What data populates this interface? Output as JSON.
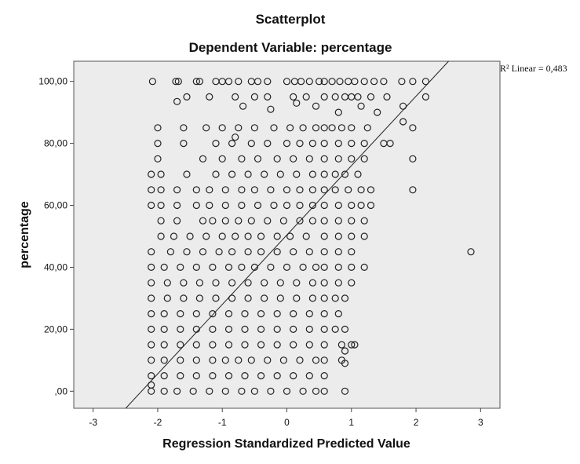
{
  "chart_data": {
    "type": "scatter",
    "title": "Scatterplot",
    "subtitle": "Dependent Variable: percentage",
    "xlabel": "Regression Standardized Predicted Value",
    "ylabel": "percentage",
    "xlim": [
      -3.3,
      3.3
    ],
    "ylim": [
      -5.5,
      106.5
    ],
    "x_ticks": [
      -3,
      -2,
      -1,
      0,
      1,
      2,
      3
    ],
    "x_tick_labels": [
      "-3",
      "-2",
      "-1",
      "0",
      "1",
      "2",
      "3"
    ],
    "y_ticks": [
      0,
      20,
      40,
      60,
      80,
      100
    ],
    "y_tick_labels": [
      ",00",
      "20,00",
      "40,00",
      "60,00",
      "80,00",
      "100,00"
    ],
    "fit_line": {
      "label": "R² Linear = 0,483",
      "intercept": 50.4,
      "slope": 22.4
    },
    "plot_background": "#ececec",
    "marker_color": "#222222",
    "grid": false,
    "points": [
      [
        -2.08,
        100
      ],
      [
        -1.72,
        100
      ],
      [
        -1.68,
        100
      ],
      [
        -1.4,
        100
      ],
      [
        -1.35,
        100
      ],
      [
        -1.1,
        100
      ],
      [
        -1.0,
        100
      ],
      [
        -0.9,
        100
      ],
      [
        -0.75,
        100
      ],
      [
        -0.55,
        100
      ],
      [
        -0.45,
        100
      ],
      [
        -0.3,
        100
      ],
      [
        0.0,
        100
      ],
      [
        0.12,
        100
      ],
      [
        0.22,
        100
      ],
      [
        0.35,
        100
      ],
      [
        0.5,
        100
      ],
      [
        0.58,
        100
      ],
      [
        0.7,
        100
      ],
      [
        0.82,
        100
      ],
      [
        0.95,
        100
      ],
      [
        1.05,
        100
      ],
      [
        1.2,
        100
      ],
      [
        1.35,
        100
      ],
      [
        1.5,
        100
      ],
      [
        1.78,
        100
      ],
      [
        1.95,
        100
      ],
      [
        2.15,
        100
      ],
      [
        -1.7,
        93.5
      ],
      [
        -1.55,
        95
      ],
      [
        -1.2,
        95
      ],
      [
        -0.8,
        95
      ],
      [
        -0.5,
        95
      ],
      [
        -0.3,
        95
      ],
      [
        0.1,
        95
      ],
      [
        0.3,
        95
      ],
      [
        0.58,
        95
      ],
      [
        0.75,
        95
      ],
      [
        0.9,
        95
      ],
      [
        1.0,
        95
      ],
      [
        1.1,
        95
      ],
      [
        1.3,
        95
      ],
      [
        1.55,
        95
      ],
      [
        2.15,
        95
      ],
      [
        -0.68,
        92
      ],
      [
        -0.25,
        91
      ],
      [
        0.15,
        93
      ],
      [
        0.45,
        92
      ],
      [
        0.8,
        90
      ],
      [
        1.15,
        92
      ],
      [
        1.4,
        90
      ],
      [
        1.8,
        92
      ],
      [
        -2.0,
        85
      ],
      [
        -1.6,
        85
      ],
      [
        -1.25,
        85
      ],
      [
        -1.0,
        85
      ],
      [
        -0.75,
        85
      ],
      [
        -0.5,
        85
      ],
      [
        -0.2,
        85
      ],
      [
        0.05,
        85
      ],
      [
        0.25,
        85
      ],
      [
        0.45,
        85
      ],
      [
        0.58,
        85
      ],
      [
        0.7,
        85
      ],
      [
        0.85,
        85
      ],
      [
        1.0,
        85
      ],
      [
        1.25,
        85
      ],
      [
        1.95,
        85
      ],
      [
        1.8,
        87
      ],
      [
        -2.0,
        80
      ],
      [
        -1.6,
        80
      ],
      [
        -1.1,
        80
      ],
      [
        -0.85,
        80
      ],
      [
        -0.55,
        80
      ],
      [
        -0.3,
        80
      ],
      [
        0.0,
        80
      ],
      [
        0.2,
        80
      ],
      [
        0.4,
        80
      ],
      [
        0.58,
        80
      ],
      [
        0.8,
        80
      ],
      [
        1.0,
        80
      ],
      [
        1.2,
        80
      ],
      [
        1.5,
        80
      ],
      [
        1.6,
        80
      ],
      [
        -0.8,
        82
      ],
      [
        -2.0,
        75
      ],
      [
        -1.3,
        75
      ],
      [
        -1.0,
        75
      ],
      [
        -0.7,
        75
      ],
      [
        -0.45,
        75
      ],
      [
        -0.15,
        75
      ],
      [
        0.1,
        75
      ],
      [
        0.35,
        75
      ],
      [
        0.58,
        75
      ],
      [
        0.8,
        75
      ],
      [
        1.0,
        75
      ],
      [
        1.2,
        75
      ],
      [
        1.95,
        75
      ],
      [
        -2.1,
        70
      ],
      [
        -1.95,
        70
      ],
      [
        -1.55,
        70
      ],
      [
        -1.1,
        70
      ],
      [
        -0.85,
        70
      ],
      [
        -0.6,
        70
      ],
      [
        -0.35,
        70
      ],
      [
        -0.1,
        70
      ],
      [
        0.15,
        70
      ],
      [
        0.4,
        70
      ],
      [
        0.58,
        70
      ],
      [
        0.75,
        70
      ],
      [
        0.9,
        70
      ],
      [
        1.1,
        70
      ],
      [
        -2.1,
        65
      ],
      [
        -1.95,
        65
      ],
      [
        -1.7,
        65
      ],
      [
        -1.4,
        65
      ],
      [
        -1.2,
        65
      ],
      [
        -0.95,
        65
      ],
      [
        -0.7,
        65
      ],
      [
        -0.5,
        65
      ],
      [
        -0.25,
        65
      ],
      [
        0.0,
        65
      ],
      [
        0.2,
        65
      ],
      [
        0.4,
        65
      ],
      [
        0.58,
        65
      ],
      [
        0.75,
        65
      ],
      [
        0.95,
        65
      ],
      [
        1.15,
        65
      ],
      [
        1.3,
        65
      ],
      [
        1.95,
        65
      ],
      [
        -2.1,
        60
      ],
      [
        -1.95,
        60
      ],
      [
        -1.7,
        60
      ],
      [
        -1.4,
        60
      ],
      [
        -1.2,
        60
      ],
      [
        -0.95,
        60
      ],
      [
        -0.7,
        60
      ],
      [
        -0.45,
        60
      ],
      [
        -0.2,
        60
      ],
      [
        0.0,
        60
      ],
      [
        0.2,
        60
      ],
      [
        0.4,
        60
      ],
      [
        0.58,
        60
      ],
      [
        0.8,
        60
      ],
      [
        1.0,
        60
      ],
      [
        1.15,
        60
      ],
      [
        1.3,
        60
      ],
      [
        -1.95,
        55
      ],
      [
        -1.7,
        55
      ],
      [
        -1.3,
        55
      ],
      [
        -1.15,
        55
      ],
      [
        -0.95,
        55
      ],
      [
        -0.75,
        55
      ],
      [
        -0.55,
        55
      ],
      [
        -0.3,
        55
      ],
      [
        -0.05,
        55
      ],
      [
        0.2,
        55
      ],
      [
        0.4,
        55
      ],
      [
        0.58,
        55
      ],
      [
        0.8,
        55
      ],
      [
        1.0,
        55
      ],
      [
        1.2,
        55
      ],
      [
        -1.95,
        50
      ],
      [
        -1.75,
        50
      ],
      [
        -1.5,
        50
      ],
      [
        -1.25,
        50
      ],
      [
        -1.0,
        50
      ],
      [
        -0.8,
        50
      ],
      [
        -0.6,
        50
      ],
      [
        -0.4,
        50
      ],
      [
        -0.15,
        50
      ],
      [
        0.05,
        50
      ],
      [
        0.3,
        50
      ],
      [
        0.58,
        50
      ],
      [
        0.8,
        50
      ],
      [
        1.0,
        50
      ],
      [
        1.2,
        50
      ],
      [
        -2.1,
        45
      ],
      [
        -1.8,
        45
      ],
      [
        -1.55,
        45
      ],
      [
        -1.3,
        45
      ],
      [
        -1.05,
        45
      ],
      [
        -0.85,
        45
      ],
      [
        -0.6,
        45
      ],
      [
        -0.4,
        45
      ],
      [
        -0.15,
        45
      ],
      [
        0.1,
        45
      ],
      [
        0.35,
        45
      ],
      [
        0.58,
        45
      ],
      [
        0.8,
        45
      ],
      [
        1.0,
        45
      ],
      [
        2.85,
        45
      ],
      [
        -2.1,
        40
      ],
      [
        -1.9,
        40
      ],
      [
        -1.65,
        40
      ],
      [
        -1.4,
        40
      ],
      [
        -1.15,
        40
      ],
      [
        -0.9,
        40
      ],
      [
        -0.7,
        40
      ],
      [
        -0.5,
        40
      ],
      [
        -0.25,
        40
      ],
      [
        0.0,
        40
      ],
      [
        0.25,
        40
      ],
      [
        0.45,
        40
      ],
      [
        0.58,
        40
      ],
      [
        0.8,
        40
      ],
      [
        1.0,
        40
      ],
      [
        1.2,
        40
      ],
      [
        -2.1,
        35
      ],
      [
        -1.85,
        35
      ],
      [
        -1.6,
        35
      ],
      [
        -1.35,
        35
      ],
      [
        -1.1,
        35
      ],
      [
        -0.85,
        35
      ],
      [
        -0.6,
        35
      ],
      [
        -0.35,
        35
      ],
      [
        -0.1,
        35
      ],
      [
        0.15,
        35
      ],
      [
        0.4,
        35
      ],
      [
        0.58,
        35
      ],
      [
        0.8,
        35
      ],
      [
        1.0,
        35
      ],
      [
        -2.1,
        30
      ],
      [
        -1.85,
        30
      ],
      [
        -1.6,
        30
      ],
      [
        -1.35,
        30
      ],
      [
        -1.1,
        30
      ],
      [
        -0.85,
        30
      ],
      [
        -0.6,
        30
      ],
      [
        -0.35,
        30
      ],
      [
        -0.1,
        30
      ],
      [
        0.15,
        30
      ],
      [
        0.4,
        30
      ],
      [
        0.58,
        30
      ],
      [
        0.75,
        30
      ],
      [
        0.9,
        30
      ],
      [
        -2.1,
        25
      ],
      [
        -1.9,
        25
      ],
      [
        -1.65,
        25
      ],
      [
        -1.4,
        25
      ],
      [
        -1.15,
        25
      ],
      [
        -0.9,
        25
      ],
      [
        -0.65,
        25
      ],
      [
        -0.4,
        25
      ],
      [
        -0.15,
        25
      ],
      [
        0.1,
        25
      ],
      [
        0.35,
        25
      ],
      [
        0.58,
        25
      ],
      [
        0.8,
        25
      ],
      [
        -2.1,
        20
      ],
      [
        -1.9,
        20
      ],
      [
        -1.65,
        20
      ],
      [
        -1.4,
        20
      ],
      [
        -1.15,
        20
      ],
      [
        -0.9,
        20
      ],
      [
        -0.65,
        20
      ],
      [
        -0.4,
        20
      ],
      [
        -0.15,
        20
      ],
      [
        0.1,
        20
      ],
      [
        0.35,
        20
      ],
      [
        0.58,
        20
      ],
      [
        0.75,
        20
      ],
      [
        0.9,
        20
      ],
      [
        -2.1,
        15
      ],
      [
        -1.9,
        15
      ],
      [
        -1.65,
        15
      ],
      [
        -1.4,
        15
      ],
      [
        -1.15,
        15
      ],
      [
        -0.9,
        15
      ],
      [
        -0.65,
        15
      ],
      [
        -0.4,
        15
      ],
      [
        -0.15,
        15
      ],
      [
        0.1,
        15
      ],
      [
        0.35,
        15
      ],
      [
        0.58,
        15
      ],
      [
        0.85,
        15
      ],
      [
        0.9,
        13
      ],
      [
        1.0,
        15
      ],
      [
        1.05,
        15
      ],
      [
        -2.1,
        10
      ],
      [
        -1.9,
        10
      ],
      [
        -1.65,
        10
      ],
      [
        -1.4,
        10
      ],
      [
        -1.15,
        10
      ],
      [
        -0.95,
        10
      ],
      [
        -0.75,
        10
      ],
      [
        -0.55,
        10
      ],
      [
        -0.3,
        10
      ],
      [
        -0.05,
        10
      ],
      [
        0.2,
        10
      ],
      [
        0.45,
        10
      ],
      [
        0.58,
        10
      ],
      [
        0.85,
        10
      ],
      [
        0.9,
        9
      ],
      [
        -2.1,
        5
      ],
      [
        -1.9,
        5
      ],
      [
        -1.65,
        5
      ],
      [
        -1.4,
        5
      ],
      [
        -1.15,
        5
      ],
      [
        -0.9,
        5
      ],
      [
        -0.65,
        5
      ],
      [
        -0.4,
        5
      ],
      [
        -0.15,
        5
      ],
      [
        0.1,
        5
      ],
      [
        0.35,
        5
      ],
      [
        0.58,
        5
      ],
      [
        -2.1,
        2
      ],
      [
        -2.1,
        0
      ],
      [
        -1.9,
        0
      ],
      [
        -1.7,
        0
      ],
      [
        -1.45,
        0
      ],
      [
        -1.2,
        0
      ],
      [
        -0.95,
        0
      ],
      [
        -0.7,
        0
      ],
      [
        -0.5,
        0
      ],
      [
        -0.25,
        0
      ],
      [
        0.0,
        0
      ],
      [
        0.25,
        0
      ],
      [
        0.45,
        0
      ],
      [
        0.58,
        0
      ],
      [
        0.9,
        0
      ]
    ]
  }
}
